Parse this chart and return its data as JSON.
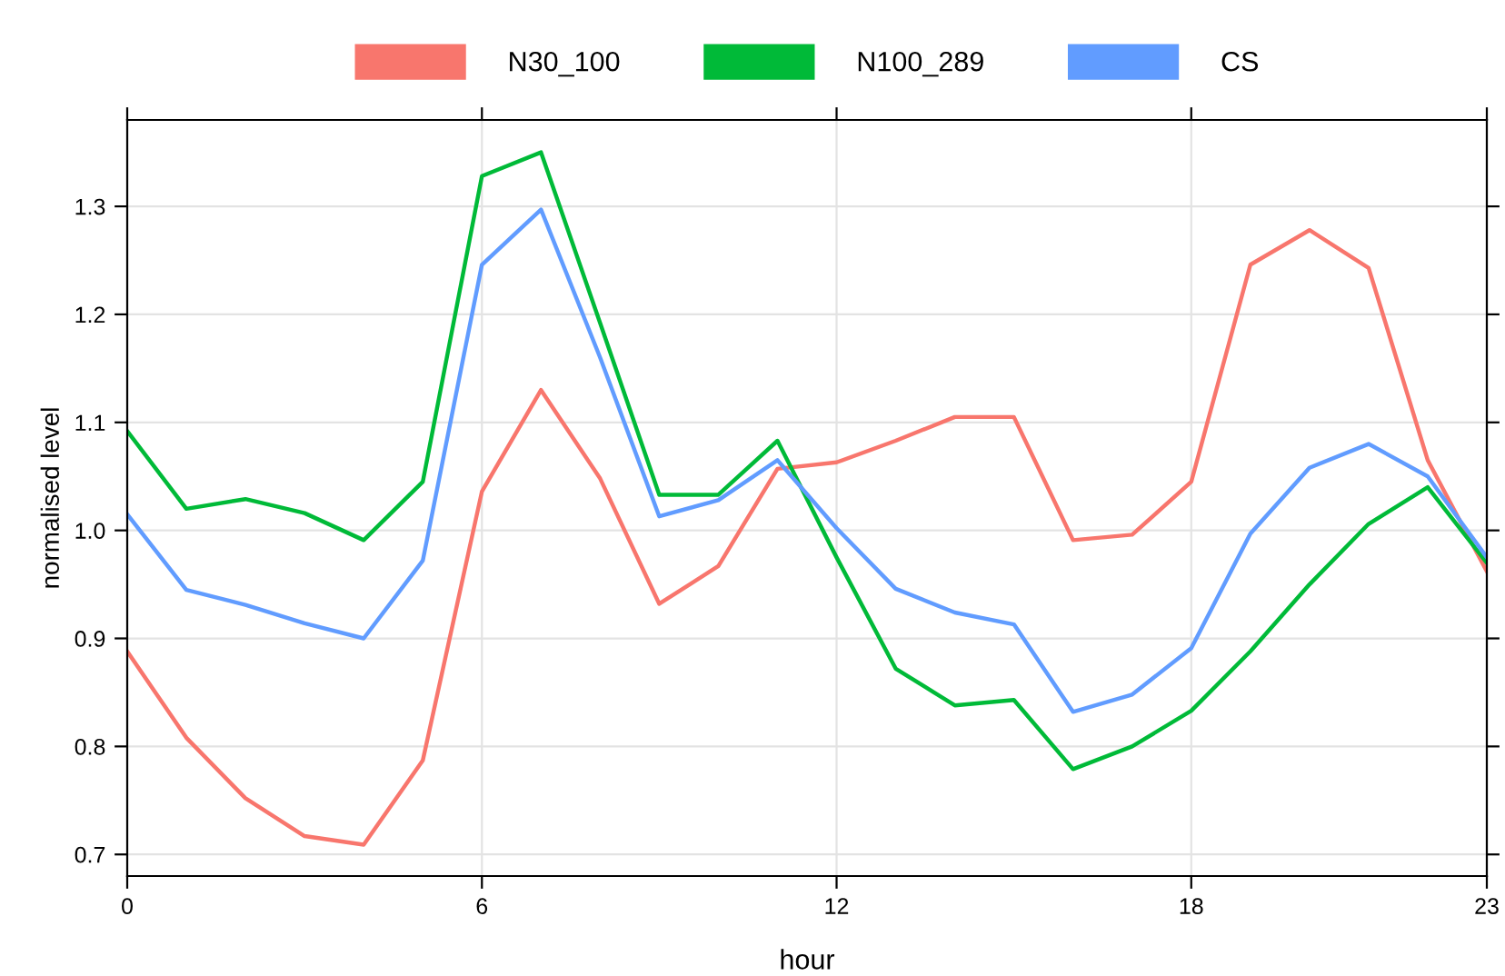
{
  "chart_data": {
    "type": "line",
    "xlabel": "hour",
    "ylabel": "normalised level",
    "x": [
      0,
      1,
      2,
      3,
      4,
      5,
      6,
      7,
      8,
      9,
      10,
      11,
      12,
      13,
      14,
      15,
      16,
      17,
      18,
      19,
      20,
      21,
      22,
      23
    ],
    "series": [
      {
        "name": "N30_100",
        "color": "#f8766d",
        "values": [
          0.888,
          0.808,
          0.752,
          0.717,
          0.709,
          0.787,
          1.036,
          1.13,
          1.048,
          0.932,
          0.967,
          1.057,
          1.063,
          1.083,
          1.105,
          1.105,
          0.991,
          0.996,
          1.045,
          1.246,
          1.278,
          1.243,
          1.065,
          0.962
        ]
      },
      {
        "name": "N100_289",
        "color": "#00ba38",
        "values": [
          1.092,
          1.02,
          1.029,
          1.016,
          0.991,
          1.045,
          1.328,
          1.35,
          1.192,
          1.033,
          1.033,
          1.083,
          0.975,
          0.872,
          0.838,
          0.843,
          0.779,
          0.8,
          0.833,
          0.888,
          0.95,
          1.006,
          1.04,
          0.97
        ]
      },
      {
        "name": "CS",
        "color": "#619cff",
        "values": [
          1.015,
          0.945,
          0.931,
          0.914,
          0.9,
          0.972,
          1.246,
          1.297,
          1.16,
          1.013,
          1.028,
          1.065,
          1.002,
          0.946,
          0.924,
          0.913,
          0.832,
          0.848,
          0.891,
          0.997,
          1.058,
          1.08,
          1.05,
          0.975
        ]
      }
    ],
    "xlim": [
      0,
      23
    ],
    "xticks": [
      0,
      6,
      12,
      18,
      23
    ],
    "ylim": [
      0.68,
      1.38
    ],
    "yticks": [
      0.7,
      0.8,
      0.9,
      {
        "value": 1,
        "label": "1.0"
      },
      1.1,
      1.2,
      1.3
    ],
    "grid": true,
    "legend": "top",
    "marker": "none",
    "line_style": "solid"
  }
}
